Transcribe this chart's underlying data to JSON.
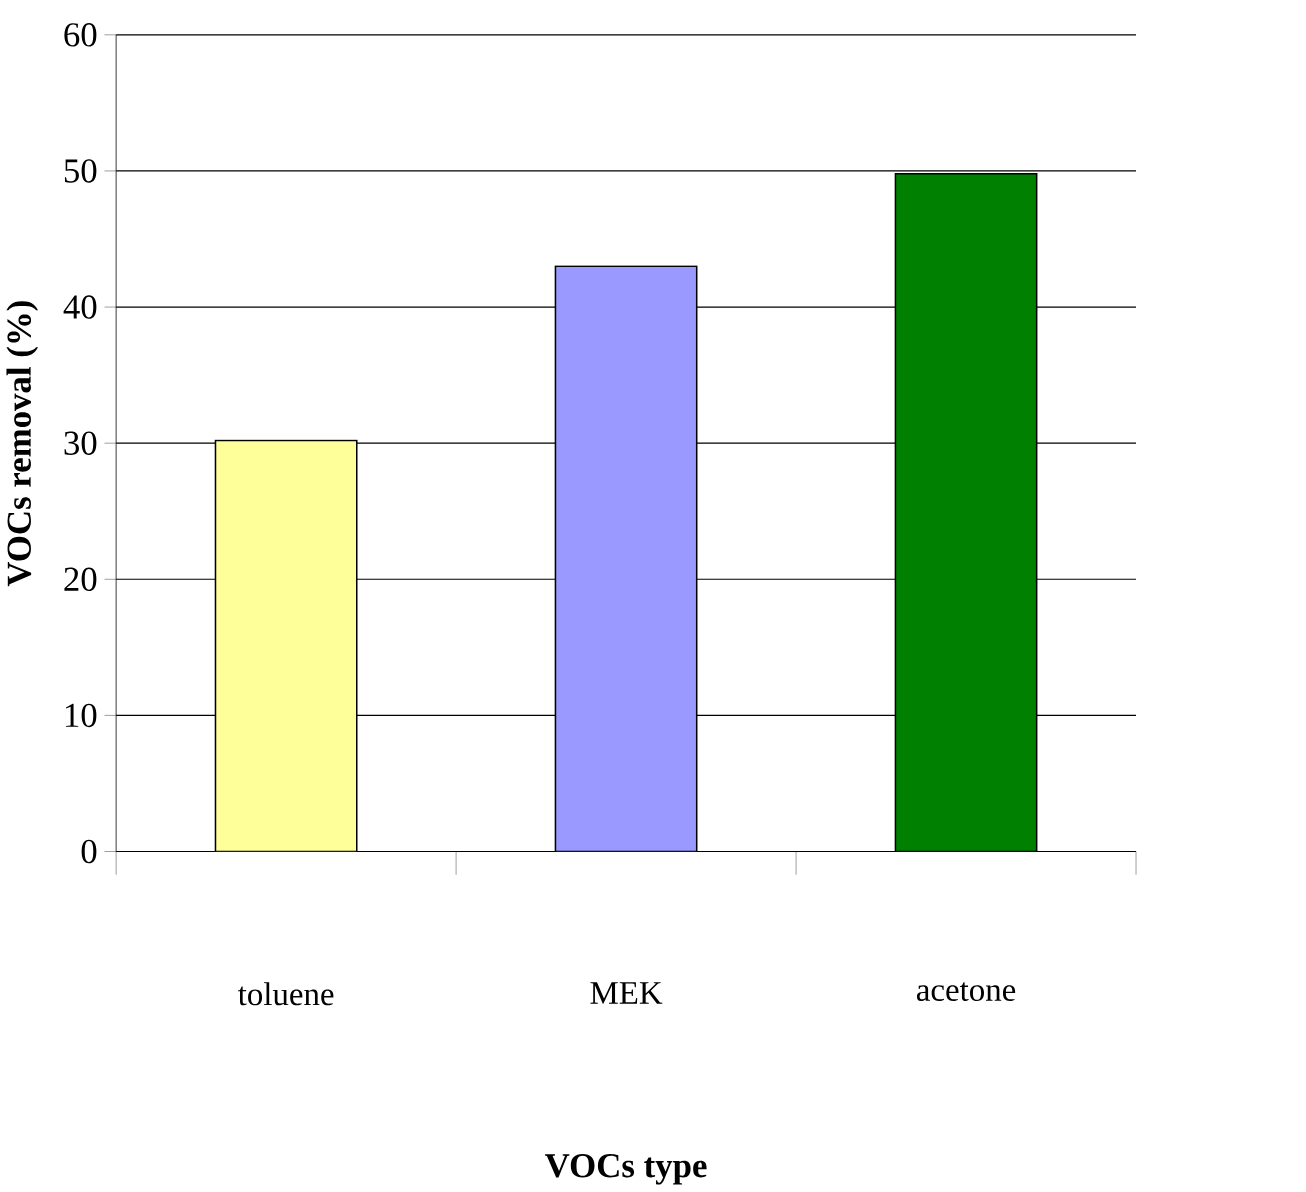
{
  "chart_data": {
    "type": "bar",
    "xlabel": "VOCs type",
    "ylabel": "VOCs removal (%)",
    "categories": [
      "toluene",
      "MEK",
      "acetone"
    ],
    "values": [
      30.2,
      43,
      49.8
    ],
    "colors": [
      "#ffff99",
      "#9999ff",
      "#008000"
    ],
    "ylim": [
      0,
      60
    ],
    "yticks": [
      0,
      10,
      20,
      30,
      40,
      50,
      60
    ],
    "grid": "y"
  }
}
